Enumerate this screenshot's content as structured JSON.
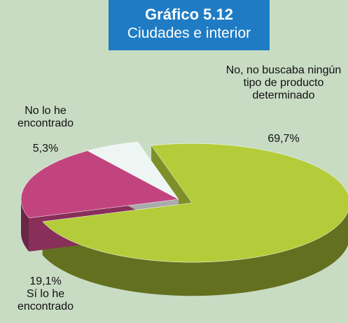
{
  "chart_data": {
    "type": "pie",
    "title": "Gráfico 5.12",
    "subtitle": "Ciudades e interior",
    "categories": [
      "No, no buscaba ningún tipo de producto determinado",
      "Sí lo he encontrado",
      "No lo he encontrado"
    ],
    "values": [
      69.7,
      19.1,
      5.3
    ],
    "value_labels": [
      "69,7%",
      "19,1%",
      "5,3%"
    ],
    "colors": [
      "#b4cc3a",
      "#c2447f",
      "#eef6f4"
    ]
  }
}
